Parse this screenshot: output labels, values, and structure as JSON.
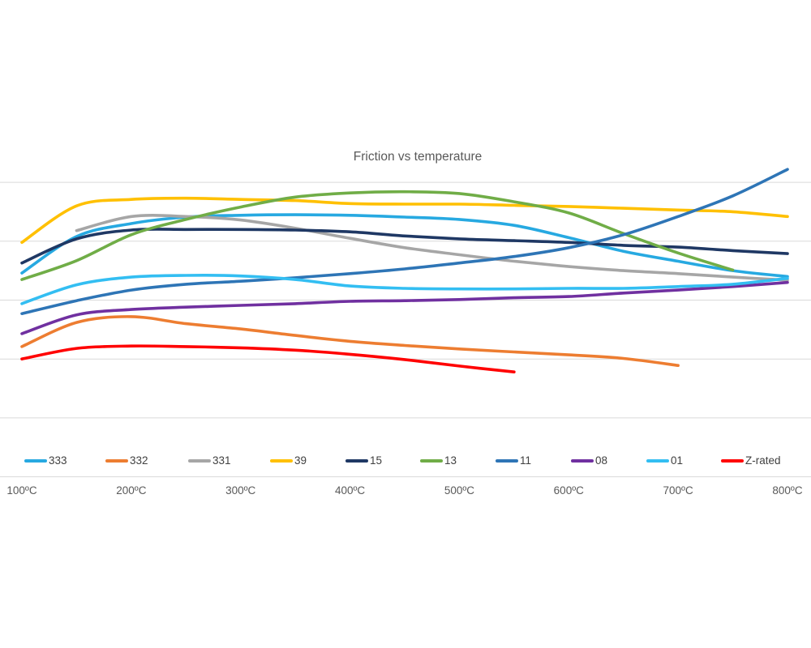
{
  "title": "Friction vs temperature",
  "axis": {
    "x_tick_labels": [
      "100ºC",
      "200ºC",
      "300ºC",
      "400ºC",
      "500ºC",
      "600ºC",
      "700ºC",
      "800ºC"
    ],
    "x_tick_values": [
      100,
      200,
      300,
      400,
      500,
      600,
      700,
      800
    ]
  },
  "colors": {
    "gridline": "#d9d9d9",
    "axis_line": "#d9d9d9",
    "title_text": "#595959",
    "axis_text": "#595959",
    "legend_text": "#404040"
  },
  "chart_data": {
    "type": "line",
    "title": "Friction vs temperature",
    "xlabel": "",
    "ylabel": "",
    "x_unit": "ºC",
    "xlim": [
      100,
      800
    ],
    "ylim": [
      0,
      5.5
    ],
    "y_axis_labels_visible": false,
    "gridlines": "horizontal",
    "grid_values": [
      1,
      2,
      3,
      4,
      5
    ],
    "legend_position": "bottom",
    "smooth": true,
    "series": [
      {
        "name": "333",
        "color": "#27a9e1",
        "points": [
          [
            100,
            3.46
          ],
          [
            150,
            4.08
          ],
          [
            200,
            4.3
          ],
          [
            250,
            4.41
          ],
          [
            300,
            4.44
          ],
          [
            350,
            4.45
          ],
          [
            400,
            4.44
          ],
          [
            450,
            4.41
          ],
          [
            500,
            4.37
          ],
          [
            550,
            4.27
          ],
          [
            600,
            4.06
          ],
          [
            650,
            3.83
          ],
          [
            700,
            3.66
          ],
          [
            750,
            3.5
          ],
          [
            800,
            3.4
          ]
        ]
      },
      {
        "name": "332",
        "color": "#ed7d31",
        "points": [
          [
            100,
            2.21
          ],
          [
            150,
            2.62
          ],
          [
            200,
            2.72
          ],
          [
            250,
            2.6
          ],
          [
            300,
            2.51
          ],
          [
            350,
            2.4
          ],
          [
            400,
            2.3
          ],
          [
            450,
            2.23
          ],
          [
            500,
            2.17
          ],
          [
            550,
            2.12
          ],
          [
            600,
            2.07
          ],
          [
            650,
            2.01
          ],
          [
            700,
            1.89
          ]
        ]
      },
      {
        "name": "331",
        "color": "#a6a6a6",
        "points": [
          [
            150,
            4.18
          ],
          [
            200,
            4.42
          ],
          [
            250,
            4.42
          ],
          [
            300,
            4.36
          ],
          [
            350,
            4.22
          ],
          [
            400,
            4.05
          ],
          [
            450,
            3.89
          ],
          [
            500,
            3.77
          ],
          [
            550,
            3.66
          ],
          [
            600,
            3.57
          ],
          [
            650,
            3.5
          ],
          [
            700,
            3.45
          ],
          [
            750,
            3.39
          ],
          [
            800,
            3.34
          ]
        ]
      },
      {
        "name": "39",
        "color": "#ffc000",
        "points": [
          [
            100,
            3.98
          ],
          [
            150,
            4.6
          ],
          [
            200,
            4.71
          ],
          [
            250,
            4.73
          ],
          [
            300,
            4.71
          ],
          [
            350,
            4.69
          ],
          [
            400,
            4.64
          ],
          [
            450,
            4.63
          ],
          [
            500,
            4.63
          ],
          [
            550,
            4.61
          ],
          [
            600,
            4.59
          ],
          [
            650,
            4.56
          ],
          [
            700,
            4.53
          ],
          [
            750,
            4.5
          ],
          [
            800,
            4.42
          ]
        ]
      },
      {
        "name": "15",
        "color": "#1f3864",
        "points": [
          [
            100,
            3.63
          ],
          [
            150,
            4.04
          ],
          [
            200,
            4.19
          ],
          [
            250,
            4.2
          ],
          [
            300,
            4.2
          ],
          [
            350,
            4.19
          ],
          [
            400,
            4.16
          ],
          [
            450,
            4.09
          ],
          [
            500,
            4.04
          ],
          [
            550,
            4.01
          ],
          [
            600,
            3.98
          ],
          [
            650,
            3.93
          ],
          [
            700,
            3.9
          ],
          [
            750,
            3.84
          ],
          [
            800,
            3.79
          ]
        ]
      },
      {
        "name": "13",
        "color": "#70ad47",
        "points": [
          [
            100,
            3.35
          ],
          [
            150,
            3.67
          ],
          [
            200,
            4.11
          ],
          [
            250,
            4.37
          ],
          [
            300,
            4.58
          ],
          [
            350,
            4.75
          ],
          [
            400,
            4.82
          ],
          [
            450,
            4.84
          ],
          [
            500,
            4.81
          ],
          [
            550,
            4.67
          ],
          [
            600,
            4.48
          ],
          [
            650,
            4.13
          ],
          [
            700,
            3.8
          ],
          [
            750,
            3.51
          ]
        ]
      },
      {
        "name": "11",
        "color": "#2e75b6",
        "points": [
          [
            100,
            2.77
          ],
          [
            150,
            2.99
          ],
          [
            200,
            3.17
          ],
          [
            250,
            3.27
          ],
          [
            300,
            3.32
          ],
          [
            350,
            3.38
          ],
          [
            400,
            3.45
          ],
          [
            450,
            3.53
          ],
          [
            500,
            3.63
          ],
          [
            550,
            3.74
          ],
          [
            600,
            3.89
          ],
          [
            650,
            4.11
          ],
          [
            700,
            4.42
          ],
          [
            750,
            4.77
          ],
          [
            800,
            5.22
          ]
        ]
      },
      {
        "name": "08",
        "color": "#7030a0",
        "points": [
          [
            100,
            2.43
          ],
          [
            150,
            2.75
          ],
          [
            200,
            2.84
          ],
          [
            250,
            2.88
          ],
          [
            300,
            2.91
          ],
          [
            350,
            2.94
          ],
          [
            400,
            2.98
          ],
          [
            450,
            2.99
          ],
          [
            500,
            3.01
          ],
          [
            550,
            3.04
          ],
          [
            600,
            3.06
          ],
          [
            650,
            3.12
          ],
          [
            700,
            3.17
          ],
          [
            750,
            3.23
          ],
          [
            800,
            3.3
          ]
        ]
      },
      {
        "name": "01",
        "color": "#33bef2",
        "points": [
          [
            100,
            2.94
          ],
          [
            150,
            3.26
          ],
          [
            200,
            3.39
          ],
          [
            250,
            3.42
          ],
          [
            300,
            3.41
          ],
          [
            350,
            3.35
          ],
          [
            400,
            3.24
          ],
          [
            450,
            3.2
          ],
          [
            500,
            3.19
          ],
          [
            550,
            3.19
          ],
          [
            600,
            3.2
          ],
          [
            650,
            3.2
          ],
          [
            700,
            3.23
          ],
          [
            750,
            3.27
          ],
          [
            800,
            3.37
          ]
        ]
      },
      {
        "name": "Z-rated",
        "color": "#ff0000",
        "points": [
          [
            100,
            2.0
          ],
          [
            150,
            2.18
          ],
          [
            200,
            2.22
          ],
          [
            250,
            2.21
          ],
          [
            300,
            2.19
          ],
          [
            350,
            2.15
          ],
          [
            400,
            2.08
          ],
          [
            450,
            1.99
          ],
          [
            500,
            1.88
          ],
          [
            550,
            1.78
          ]
        ]
      }
    ]
  }
}
